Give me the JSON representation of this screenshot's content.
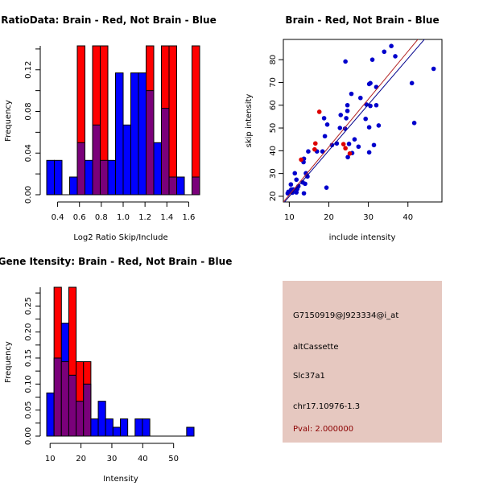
{
  "colors": {
    "brain": "#ff0000",
    "not_brain": "#0000ff",
    "overlap": "#7a007a",
    "panel": "#e6c8c0",
    "pval": "#8b0000"
  },
  "chart_data": [
    {
      "type": "bar",
      "title": "RatioData: Brain - Red, Not Brain - Blue",
      "xlabel": "Log2 Ratio Skip/Include",
      "ylabel": "Frequency",
      "xlim": [
        0.3,
        1.7
      ],
      "ylim": [
        0,
        0.143
      ],
      "breaks_start": 0.3,
      "bin_width": 0.07,
      "xticks": [
        "0.4",
        "0.6",
        "0.8",
        "1.0",
        "1.2",
        "1.4",
        "1.6"
      ],
      "yticks": [
        "0.00",
        "0.04",
        "0.08",
        "0.12"
      ],
      "series": [
        {
          "name": "Not Brain",
          "values": [
            0.033,
            0.033,
            0,
            0.017,
            0.05,
            0.033,
            0.067,
            0.033,
            0.033,
            0.117,
            0.067,
            0.117,
            0.117,
            0.1,
            0.05,
            0.083,
            0.017,
            0.017,
            0,
            0.017
          ]
        },
        {
          "name": "Brain",
          "values": [
            0,
            0,
            0,
            0,
            0.143,
            0,
            0.143,
            0.143,
            0,
            0,
            0,
            0,
            0,
            0.143,
            0,
            0.143,
            0.143,
            0,
            0,
            0.143
          ]
        }
      ]
    },
    {
      "type": "scatter",
      "title": "Brain - Red, Not Brain - Blue",
      "xlabel": "include intensity",
      "ylabel": "skip intensity",
      "xlim": [
        8.5,
        48.6
      ],
      "ylim": [
        17.5,
        88.9
      ],
      "xticks": [
        "10",
        "20",
        "30",
        "40"
      ],
      "yticks": [
        "20",
        "30",
        "40",
        "50",
        "60",
        "70",
        "80"
      ],
      "series": [
        {
          "name": "Not Brain",
          "points": [
            [
              35.8,
              86
            ],
            [
              34,
              83.5
            ],
            [
              36.8,
              81.5
            ],
            [
              31,
              80
            ],
            [
              24.2,
              79.2
            ],
            [
              46.5,
              76
            ],
            [
              41,
              69.7
            ],
            [
              30.5,
              69.7
            ],
            [
              30.2,
              69.3
            ],
            [
              32,
              68
            ],
            [
              25.7,
              65
            ],
            [
              28,
              63.2
            ],
            [
              29.5,
              60.3
            ],
            [
              24.7,
              60
            ],
            [
              30.5,
              59.7
            ],
            [
              32,
              60
            ],
            [
              24.7,
              57.5
            ],
            [
              18.8,
              54.3
            ],
            [
              24.4,
              54.3
            ],
            [
              29.3,
              54
            ],
            [
              23,
              55.7
            ],
            [
              41.6,
              52.2
            ],
            [
              19.6,
              51.5
            ],
            [
              32.6,
              51.1
            ],
            [
              22.8,
              50
            ],
            [
              30.2,
              50.3
            ],
            [
              24.1,
              49.7
            ],
            [
              19,
              46.4
            ],
            [
              26.5,
              45
            ],
            [
              27.5,
              41.8
            ],
            [
              31.4,
              42.5
            ],
            [
              22,
              43.2
            ],
            [
              25.1,
              43
            ],
            [
              20.8,
              42.5
            ],
            [
              18.4,
              39.7
            ],
            [
              17,
              39.7
            ],
            [
              14.8,
              39.7
            ],
            [
              25.9,
              39
            ],
            [
              30.2,
              39.3
            ],
            [
              24.8,
              37.2
            ],
            [
              13.7,
              36.5
            ],
            [
              13.6,
              35
            ],
            [
              11.4,
              30.1
            ],
            [
              14.2,
              30.1
            ],
            [
              14.6,
              28.7
            ],
            [
              11.8,
              27.3
            ],
            [
              13.4,
              26.1
            ],
            [
              14,
              25.5
            ],
            [
              10.4,
              25.2
            ],
            [
              12.3,
              24.4
            ],
            [
              12,
              23.2
            ],
            [
              19.4,
              23.8
            ],
            [
              10.5,
              23
            ],
            [
              11,
              23
            ],
            [
              9.8,
              22
            ],
            [
              10.2,
              22
            ],
            [
              9.6,
              21.3
            ],
            [
              11.8,
              21.7
            ],
            [
              13.7,
              21.3
            ],
            [
              10.8,
              21.6
            ]
          ]
        },
        {
          "name": "Brain",
          "points": [
            [
              17.6,
              57.1
            ],
            [
              16.6,
              43.2
            ],
            [
              16.4,
              40.6
            ],
            [
              23.7,
              42.9
            ],
            [
              24.2,
              41.1
            ],
            [
              25.3,
              38.8
            ],
            [
              13,
              36.1
            ]
          ]
        }
      ],
      "fit_lines": [
        {
          "name": "Brain",
          "slope": 2.1,
          "intercept": -0.35
        },
        {
          "name": "Not Brain",
          "slope": 2.02,
          "intercept": -0.28
        }
      ]
    },
    {
      "type": "bar",
      "title": "Gene Itensity: Brain - Red, Not Brain - Blue",
      "xlabel": "Intensity",
      "ylabel": "Frequency",
      "xlim": [
        8.9,
        56.6
      ],
      "ylim": [
        0,
        0.286
      ],
      "breaks_start": 8.9,
      "bin_width": 2.385,
      "xticks": [
        "10",
        "20",
        "30",
        "40",
        "50"
      ],
      "yticks": [
        "0.00",
        "0.05",
        "0.10",
        "0.15",
        "0.20",
        "0.25"
      ],
      "series": [
        {
          "name": "Not Brain",
          "values": [
            0.083,
            0.15,
            0.217,
            0.117,
            0.067,
            0.1,
            0.033,
            0.067,
            0.033,
            0.017,
            0.033,
            0,
            0.033,
            0.033,
            0,
            0,
            0,
            0,
            0,
            0.017
          ]
        },
        {
          "name": "Brain",
          "values": [
            0,
            0.286,
            0.143,
            0.286,
            0.143,
            0.143,
            0,
            0,
            0,
            0,
            0,
            0,
            0,
            0,
            0,
            0,
            0,
            0,
            0,
            0
          ]
        }
      ]
    }
  ],
  "info": {
    "probe": "G7150919@J923334@i_at",
    "event_type": "altCassette",
    "gene": "Slc37a1",
    "location": "chr17.10976-1.3",
    "pval": "Pval: 2.000000"
  }
}
